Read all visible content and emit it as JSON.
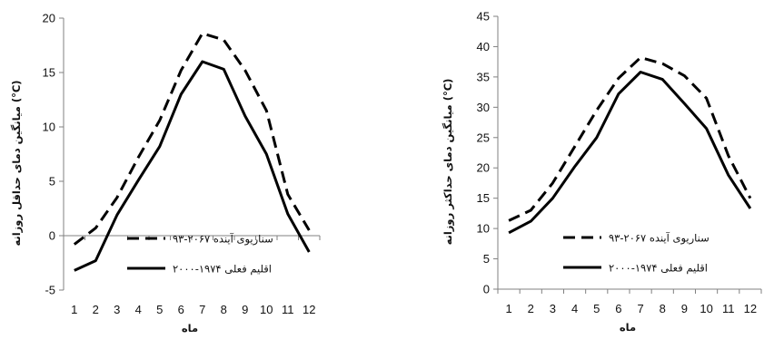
{
  "chart_data": [
    {
      "type": "line",
      "x": [
        1,
        2,
        3,
        4,
        5,
        6,
        7,
        8,
        9,
        10,
        11,
        12
      ],
      "ylim": [
        -5,
        20
      ],
      "yticks": [
        -5,
        0,
        5,
        10,
        15,
        20
      ],
      "ylabel": "میانگین دمای حداقل روزانه (°C)",
      "xlabel": "ماه",
      "legend_position": "bottom-right",
      "series": [
        {
          "name": "سناریوی آینده ۲۰۶۷-۹۳",
          "style": "dashed",
          "color": "#000000",
          "values": [
            -0.8,
            0.7,
            3.5,
            7.2,
            10.6,
            15.2,
            18.6,
            18.0,
            15.2,
            11.5,
            3.8,
            0.5
          ]
        },
        {
          "name": "اقلیم فعلی ۱۹۷۴-۲۰۰۰",
          "style": "solid",
          "color": "#000000",
          "values": [
            -3.2,
            -2.3,
            1.9,
            5.1,
            8.2,
            13.0,
            16.0,
            15.3,
            11.0,
            7.5,
            2.0,
            -1.5
          ]
        }
      ]
    },
    {
      "type": "line",
      "x": [
        1,
        2,
        3,
        4,
        5,
        6,
        7,
        8,
        9,
        10,
        11,
        12
      ],
      "ylim": [
        0,
        45
      ],
      "yticks": [
        0,
        5,
        10,
        15,
        20,
        25,
        30,
        35,
        40,
        45
      ],
      "ylabel": "میانگین دمای حداکثر روزانه (°C)",
      "xlabel": "ماه",
      "legend_position": "bottom-right",
      "series": [
        {
          "name": "سناریوی آینده ۲۰۶۷-۹۳",
          "style": "dashed",
          "color": "#000000",
          "values": [
            11.3,
            13.0,
            17.5,
            23.5,
            29.5,
            34.8,
            38.2,
            37.2,
            35.2,
            31.5,
            22.0,
            15.0
          ]
        },
        {
          "name": "اقلیم فعلی ۱۹۷۴-۲۰۰۰",
          "style": "solid",
          "color": "#000000",
          "values": [
            9.3,
            11.2,
            15.0,
            20.2,
            25.0,
            32.2,
            35.8,
            34.6,
            30.6,
            26.5,
            18.8,
            13.3
          ]
        }
      ]
    }
  ]
}
